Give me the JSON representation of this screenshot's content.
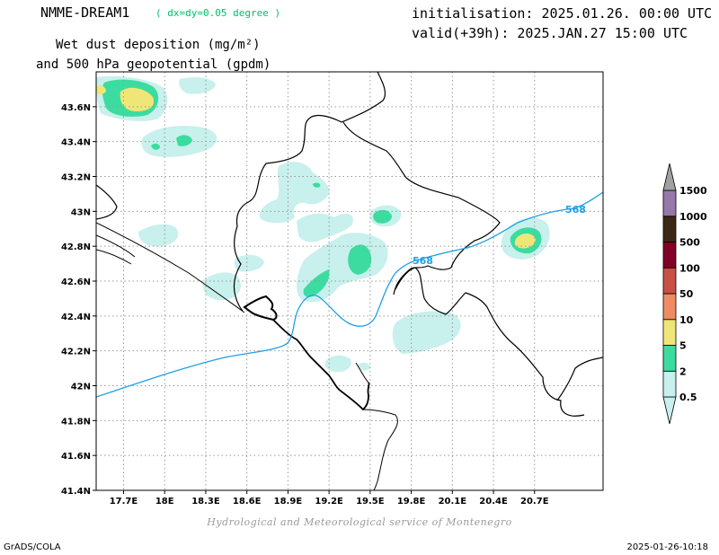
{
  "header": {
    "model": "NMME-DREAM1",
    "resolution": "( dx=dy=0.05 degree )",
    "title_line1": "Wet dust deposition (mg/m²)",
    "title_line2": "and 500 hPa geopotential (gpdm)",
    "init": "initialisation: 2025.01.26. 00:00 UTC",
    "valid": "valid(+39h): 2025.JAN.27 15:00 UTC"
  },
  "map": {
    "lon_range": [
      17.5,
      21.2
    ],
    "lat_range": [
      41.4,
      43.8
    ],
    "lon_ticks": [
      {
        "value": 17.7,
        "label": "17.7E"
      },
      {
        "value": 18.0,
        "label": "18E"
      },
      {
        "value": 18.3,
        "label": "18.3E"
      },
      {
        "value": 18.6,
        "label": "18.6E"
      },
      {
        "value": 18.9,
        "label": "18.9E"
      },
      {
        "value": 19.2,
        "label": "19.2E"
      },
      {
        "value": 19.5,
        "label": "19.5E"
      },
      {
        "value": 19.8,
        "label": "19.8E"
      },
      {
        "value": 20.1,
        "label": "20.1E"
      },
      {
        "value": 20.4,
        "label": "20.4E"
      },
      {
        "value": 20.7,
        "label": "20.7E"
      }
    ],
    "lat_ticks": [
      {
        "value": 43.6,
        "label": "43.6N"
      },
      {
        "value": 43.4,
        "label": "43.4N"
      },
      {
        "value": 43.2,
        "label": "43.2N"
      },
      {
        "value": 43.0,
        "label": "43N"
      },
      {
        "value": 42.8,
        "label": "42.8N"
      },
      {
        "value": 42.6,
        "label": "42.6N"
      },
      {
        "value": 42.4,
        "label": "42.4N"
      },
      {
        "value": 42.2,
        "label": "42.2N"
      },
      {
        "value": 42.0,
        "label": "42N"
      },
      {
        "value": 41.8,
        "label": "41.8N"
      },
      {
        "value": 41.6,
        "label": "41.6N"
      },
      {
        "value": 41.4,
        "label": "41.4N"
      }
    ],
    "grid": true,
    "contour_label": "568",
    "contour_color": "#1ea0e6"
  },
  "legend": {
    "levels": [
      "0.5",
      "2",
      "5",
      "10",
      "50",
      "100",
      "500",
      "1000",
      "1500"
    ],
    "colors": [
      "#c8f0ec",
      "#3cdca0",
      "#f0e678",
      "#f08c64",
      "#c85046",
      "#820028",
      "#3c2814",
      "#9678aa",
      "#a0a0a0"
    ]
  },
  "credit": "Hydrological and Meteorological service of Montenegro",
  "footer": {
    "left": "GrADS/COLA",
    "right": "2025-01-26-10:18"
  }
}
